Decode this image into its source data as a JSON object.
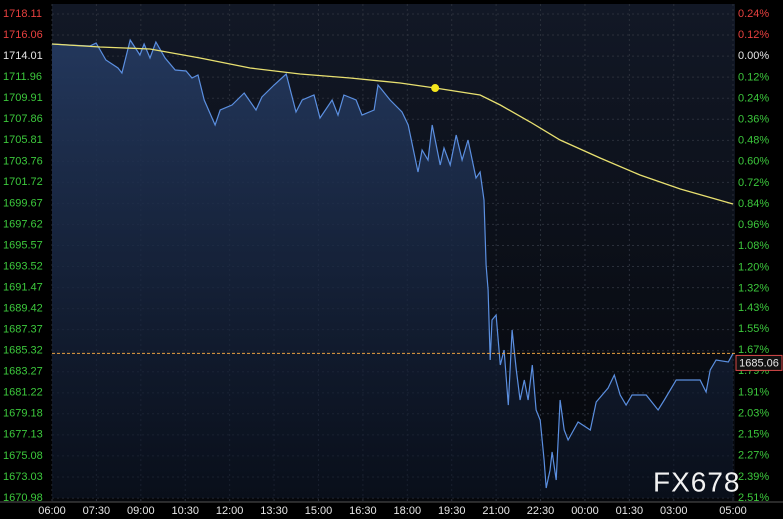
{
  "chart_data": {
    "type": "line",
    "watermark": "FX678",
    "current_price": 1685.06,
    "current_price_label": "1685.06",
    "xlim": [
      0,
      23
    ],
    "xticks": [
      {
        "value": 0,
        "label": "06:00"
      },
      {
        "value": 1.5,
        "label": "07:30"
      },
      {
        "value": 3,
        "label": "09:00"
      },
      {
        "value": 4.5,
        "label": "10:30"
      },
      {
        "value": 6,
        "label": "12:00"
      },
      {
        "value": 7.5,
        "label": "13:30"
      },
      {
        "value": 9,
        "label": "15:00"
      },
      {
        "value": 10.5,
        "label": "16:30"
      },
      {
        "value": 12,
        "label": "18:00"
      },
      {
        "value": 13.5,
        "label": "19:30"
      },
      {
        "value": 15,
        "label": "21:00"
      },
      {
        "value": 16.5,
        "label": "22:30"
      },
      {
        "value": 18,
        "label": "00:00"
      },
      {
        "value": 19.5,
        "label": "01:30"
      },
      {
        "value": 21,
        "label": "03:00"
      },
      {
        "value": 23,
        "label": "05:00"
      }
    ],
    "ylim": [
      1670.98,
      1718.11
    ],
    "yticks": [
      1718.11,
      1716.06,
      1714.01,
      1711.96,
      1709.91,
      1707.86,
      1705.81,
      1703.76,
      1701.72,
      1699.67,
      1697.62,
      1695.57,
      1693.52,
      1691.47,
      1689.42,
      1687.37,
      1685.32,
      1683.27,
      1681.22,
      1679.18,
      1677.13,
      1675.08,
      1673.03,
      1670.98
    ],
    "y2lim": [
      -2.51,
      0.24
    ],
    "y2ticks": [
      {
        "value": 0.24,
        "label": "0.24%"
      },
      {
        "value": 0.12,
        "label": "0.12%"
      },
      {
        "value": 0,
        "label": "0.00%"
      },
      {
        "value": -0.12,
        "label": "0.12%"
      },
      {
        "value": -0.24,
        "label": "0.24%"
      },
      {
        "value": -0.36,
        "label": "0.36%"
      },
      {
        "value": -0.48,
        "label": "0.48%"
      },
      {
        "value": -0.6,
        "label": "0.60%"
      },
      {
        "value": -0.72,
        "label": "0.72%"
      },
      {
        "value": -0.84,
        "label": "0.84%"
      },
      {
        "value": -0.96,
        "label": "0.96%"
      },
      {
        "value": -1.08,
        "label": "1.08%"
      },
      {
        "value": -1.2,
        "label": "1.20%"
      },
      {
        "value": -1.32,
        "label": "1.32%"
      },
      {
        "value": -1.43,
        "label": "1.43%"
      },
      {
        "value": -1.55,
        "label": "1.55%"
      },
      {
        "value": -1.67,
        "label": "1.67%"
      },
      {
        "value": -1.79,
        "label": "1.79%"
      },
      {
        "value": -1.91,
        "label": "1.91%"
      },
      {
        "value": -2.03,
        "label": "2.03%"
      },
      {
        "value": -2.15,
        "label": "2.15%"
      },
      {
        "value": -2.27,
        "label": "2.27%"
      },
      {
        "value": -2.39,
        "label": "2.39%"
      },
      {
        "value": -2.51,
        "label": "2.51%"
      }
    ],
    "grid": true,
    "series": [
      {
        "color": "#5b8fe0",
        "x": [
          0,
          0.54,
          1.28,
          1.49,
          1.82,
          2.23,
          2.36,
          2.64,
          2.97,
          3.11,
          3.31,
          3.51,
          3.82,
          4.16,
          4.53,
          4.73,
          4.93,
          5.14,
          5.51,
          5.68,
          6.08,
          6.49,
          6.89,
          7.09,
          7.5,
          7.91,
          8.24,
          8.45,
          8.85,
          9.05,
          9.46,
          9.66,
          9.86,
          10.27,
          10.47,
          10.88,
          11.01,
          11.42,
          11.82,
          12.03,
          12.36,
          12.5,
          12.7,
          12.84,
          13.11,
          13.24,
          13.45,
          13.65,
          13.85,
          14.05,
          14.32,
          14.46,
          14.59,
          14.66,
          14.73,
          14.8,
          14.86,
          15.0,
          15.14,
          15.27,
          15.41,
          15.54,
          15.68,
          15.81,
          15.95,
          16.08,
          16.22,
          16.35,
          16.49,
          16.62,
          16.69,
          16.82,
          16.89,
          17.03,
          17.16,
          17.3,
          17.43,
          17.77,
          18.18,
          18.38,
          18.78,
          18.99,
          19.19,
          19.39,
          19.59,
          20.07,
          20.47,
          20.68,
          21.08,
          21.49,
          21.89,
          22.09,
          22.23,
          22.43,
          22.84,
          23
        ],
        "values": [
          1715.19,
          1715.09,
          1714.99,
          1715.29,
          1713.63,
          1712.85,
          1712.36,
          1715.58,
          1714.12,
          1715.19,
          1713.83,
          1715.38,
          1713.83,
          1712.66,
          1712.56,
          1711.88,
          1712.17,
          1709.74,
          1707.3,
          1708.76,
          1709.25,
          1710.42,
          1708.76,
          1710.03,
          1711.2,
          1712.27,
          1708.57,
          1709.74,
          1710.22,
          1707.98,
          1709.74,
          1708.27,
          1710.22,
          1709.74,
          1708.27,
          1708.76,
          1711.2,
          1709.74,
          1708.57,
          1707.3,
          1702.72,
          1704.87,
          1703.89,
          1707.3,
          1703.41,
          1705.06,
          1703.41,
          1706.33,
          1703.89,
          1705.84,
          1702.14,
          1702.72,
          1700.0,
          1693.67,
          1691.23,
          1684.42,
          1688.31,
          1688.8,
          1683.93,
          1685.39,
          1680.03,
          1687.34,
          1683.44,
          1680.52,
          1682.47,
          1680.52,
          1683.93,
          1679.55,
          1678.57,
          1674.68,
          1671.95,
          1673.7,
          1675.46,
          1672.73,
          1680.52,
          1677.6,
          1676.63,
          1678.38,
          1677.6,
          1680.33,
          1681.69,
          1682.96,
          1681.01,
          1680.03,
          1681.01,
          1681.01,
          1679.55,
          1680.52,
          1682.47,
          1682.47,
          1682.47,
          1681.3,
          1683.44,
          1684.42,
          1684.22,
          1685.06
        ]
      },
      {
        "color": "#e8e070",
        "marker_index": 8,
        "x": [
          0,
          1.62,
          3.31,
          5.0,
          6.69,
          8.38,
          10.07,
          11.76,
          12.94,
          14.46,
          15.14,
          16.15,
          17.16,
          18.51,
          19.86,
          21.22,
          23
        ],
        "values": [
          1715.19,
          1714.9,
          1714.7,
          1713.83,
          1712.85,
          1712.27,
          1711.88,
          1711.39,
          1710.9,
          1710.22,
          1709.25,
          1707.59,
          1705.84,
          1704.09,
          1702.43,
          1701.07,
          1699.61
        ]
      }
    ]
  }
}
